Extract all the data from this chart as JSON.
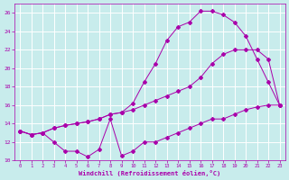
{
  "xlabel": "Windchill (Refroidissement éolien,°C)",
  "bg_color": "#c8ecec",
  "line_color": "#aa00aa",
  "grid_color": "#ffffff",
  "xlim": [
    -0.5,
    23.5
  ],
  "ylim": [
    10,
    27
  ],
  "yticks": [
    10,
    12,
    14,
    16,
    18,
    20,
    22,
    24,
    26
  ],
  "xticks": [
    0,
    1,
    2,
    3,
    4,
    5,
    6,
    7,
    8,
    9,
    10,
    11,
    12,
    13,
    14,
    15,
    16,
    17,
    18,
    19,
    20,
    21,
    22,
    23
  ],
  "line1_x": [
    0,
    1,
    2,
    3,
    4,
    5,
    6,
    7,
    8,
    9,
    10,
    11,
    12,
    13,
    14,
    15,
    16,
    17,
    18,
    19,
    20,
    21,
    22,
    23
  ],
  "line1_y": [
    13.2,
    12.8,
    13.0,
    12.0,
    11.0,
    11.0,
    10.4,
    11.2,
    14.5,
    10.5,
    11.0,
    12.0,
    12.0,
    12.5,
    13.0,
    13.5,
    14.0,
    14.5,
    14.5,
    15.0,
    15.5,
    15.8,
    16.0,
    16.0
  ],
  "line2_x": [
    0,
    1,
    2,
    3,
    4,
    5,
    6,
    7,
    8,
    9,
    10,
    11,
    12,
    13,
    14,
    15,
    16,
    17,
    18,
    19,
    20,
    21,
    22,
    23
  ],
  "line2_y": [
    13.2,
    12.8,
    13.0,
    13.5,
    13.8,
    14.0,
    14.2,
    14.5,
    15.0,
    15.2,
    15.5,
    16.0,
    16.5,
    17.0,
    17.5,
    18.0,
    19.0,
    20.5,
    21.5,
    22.0,
    22.0,
    22.0,
    21.0,
    16.0
  ],
  "line3_x": [
    0,
    1,
    2,
    3,
    4,
    5,
    6,
    7,
    8,
    9,
    10,
    11,
    12,
    13,
    14,
    15,
    16,
    17,
    18,
    19,
    20,
    21,
    22,
    23
  ],
  "line3_y": [
    13.2,
    12.8,
    13.0,
    13.5,
    13.8,
    14.0,
    14.2,
    14.5,
    15.0,
    15.2,
    16.2,
    18.5,
    20.5,
    23.0,
    24.5,
    25.0,
    26.2,
    26.2,
    25.8,
    25.0,
    23.5,
    21.0,
    18.5,
    16.0
  ]
}
